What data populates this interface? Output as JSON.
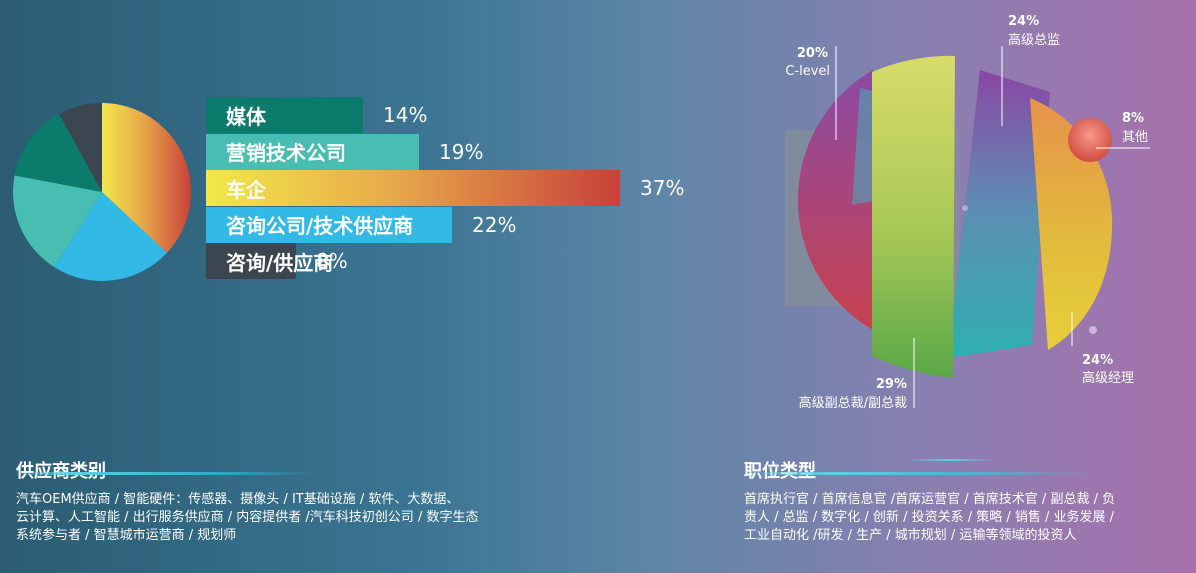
{
  "chart_data": [
    {
      "type": "bar",
      "title": "",
      "categories": [
        "媒体",
        "营销技术公司",
        "车企",
        "咨询公司/技术供应商",
        "咨询/供应商"
      ],
      "values": [
        14,
        19,
        37,
        22,
        8
      ],
      "value_labels": [
        "14%",
        "19%",
        "37%",
        "22%",
        "8%"
      ],
      "colors": [
        "#0b7b6c",
        "#48bdb2",
        "gradient:#f2e84a-#c8403a",
        "#33b9e6",
        "#3b4650"
      ]
    },
    {
      "type": "pie",
      "title": "",
      "slices": [
        {
          "label": "车企",
          "value": 37,
          "color": "gradient:#f2e84a-#c8403a"
        },
        {
          "label": "咨询公司/技术供应商",
          "value": 22,
          "color": "#33b9e6"
        },
        {
          "label": "营销技术公司",
          "value": 19,
          "color": "#48bdb2"
        },
        {
          "label": "媒体",
          "value": 14,
          "color": "#0b7b6c"
        },
        {
          "label": "咨询/供应商",
          "value": 8,
          "color": "#3b4650"
        }
      ]
    },
    {
      "type": "pie",
      "title": "",
      "slices": [
        {
          "pct": "20%",
          "label": "C-level"
        },
        {
          "pct": "24%",
          "label": "高级总监"
        },
        {
          "pct": "8%",
          "label": "其他"
        },
        {
          "pct": "24%",
          "label": "高级经理"
        },
        {
          "pct": "29%",
          "label": "高级副总裁/副总裁"
        }
      ]
    }
  ],
  "sections": {
    "supplier": {
      "title": "供应商类别",
      "lines": [
        "汽车OEM供应商 / 智能硬件：传感器<span style='letter-spacing:-3px'>hu</span>、摄像头 / IT基础设施 / 软件、大数据、",
        "云计算、人工智能 / 出行服务供应商 / 内容提供者 /汽车科技初创公司 / 数字生态",
        "系统参与者 / 智慧城市运营商 / 规划师"
      ]
    },
    "position": {
      "title": "职位类型",
      "lines": [
        "首席执行官 / 首席信息官 /首席运营官 / 首席技术官 / 副总裁 / 负",
        "责人 / 总监 / 数字化 / 创新 / 投资关系 / 策略 / 销售 / 业务发展 /",
        "工业自动化 /研发 / 生产 / 城市规划 / 运输等领域的投资人"
      ]
    }
  },
  "colors": {
    "media": "#0b7b6c",
    "marketing": "#48bdb2",
    "oem_start": "#f2e84a",
    "oem_end": "#c8403a",
    "consulting_tech": "#33b9e6",
    "consulting": "#3b4650"
  }
}
